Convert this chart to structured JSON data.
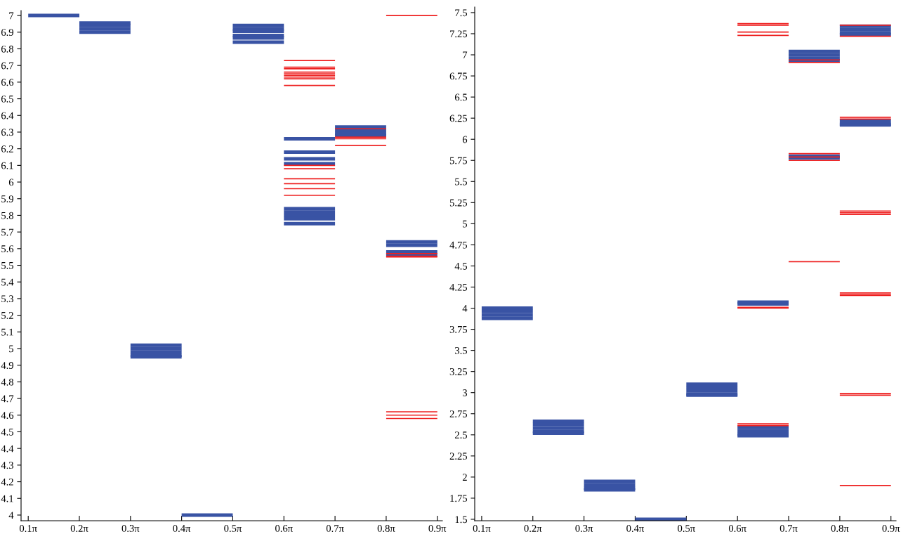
{
  "chart_data": [
    {
      "type": "line",
      "xlim": [
        0.2702,
        2.8588
      ],
      "ylim": [
        3.966,
        7.03
      ],
      "grid": false,
      "marker": "none",
      "line_style": "solid",
      "xticks": [
        {
          "value": 0.3142,
          "label": "0.1π"
        },
        {
          "value": 0.6283,
          "label": "0.2π"
        },
        {
          "value": 0.9425,
          "label": "0.3π"
        },
        {
          "value": 1.2566,
          "label": "0.4π"
        },
        {
          "value": 1.5708,
          "label": "0.5π"
        },
        {
          "value": 1.885,
          "label": "0.6π"
        },
        {
          "value": 2.1991,
          "label": "0.7π"
        },
        {
          "value": 2.5133,
          "label": "0.8π"
        },
        {
          "value": 2.8274,
          "label": "0.9π"
        }
      ],
      "yticks": [
        4,
        4.1,
        4.2,
        4.3,
        4.4,
        4.5,
        4.6,
        4.7,
        4.8,
        4.9,
        5,
        5.1,
        5.2,
        5.3,
        5.4,
        5.5,
        5.6,
        5.7,
        5.8,
        5.9,
        6,
        6.1,
        6.2,
        6.3,
        6.4,
        6.5,
        6.6,
        6.7,
        6.8,
        6.9,
        7
      ],
      "series": [
        {
          "color": "#3953a4",
          "x": [
            0.3142,
            0.6283
          ],
          "values": [
            7.0,
            7.0
          ]
        },
        {
          "color": "#3953a4",
          "x": [
            0.6283,
            0.9425
          ],
          "values": [
            6.955,
            6.955
          ]
        },
        {
          "color": "#3953a4",
          "x": [
            0.6283,
            0.9425
          ],
          "values": [
            6.94,
            6.94
          ]
        },
        {
          "color": "#3953a4",
          "x": [
            0.6283,
            0.9425
          ],
          "values": [
            6.92,
            6.92
          ]
        },
        {
          "color": "#3953a4",
          "x": [
            0.6283,
            0.9425
          ],
          "values": [
            6.9,
            6.9
          ]
        },
        {
          "color": "#3953a4",
          "x": [
            0.9425,
            1.2566
          ],
          "values": [
            5.02,
            5.02
          ]
        },
        {
          "color": "#3953a4",
          "x": [
            0.9425,
            1.2566
          ],
          "values": [
            5.0,
            5.0
          ]
        },
        {
          "color": "#3953a4",
          "x": [
            0.9425,
            1.2566
          ],
          "values": [
            4.98,
            4.98
          ]
        },
        {
          "color": "#3953a4",
          "x": [
            0.9425,
            1.2566
          ],
          "values": [
            4.96,
            4.96
          ]
        },
        {
          "color": "#3953a4",
          "x": [
            0.9425,
            1.2566
          ],
          "values": [
            4.95,
            4.95
          ]
        },
        {
          "color": "#3953a4",
          "x": [
            1.2566,
            1.5708
          ],
          "values": [
            4.0,
            4.0
          ]
        },
        {
          "color": "#3953a4",
          "x": [
            1.5708,
            1.885
          ],
          "values": [
            6.94,
            6.94
          ]
        },
        {
          "color": "#3953a4",
          "x": [
            1.5708,
            1.885
          ],
          "values": [
            6.92,
            6.92
          ]
        },
        {
          "color": "#3953a4",
          "x": [
            1.5708,
            1.885
          ],
          "values": [
            6.905,
            6.905
          ]
        },
        {
          "color": "#3953a4",
          "x": [
            1.5708,
            1.885
          ],
          "values": [
            6.88,
            6.88
          ]
        },
        {
          "color": "#3953a4",
          "x": [
            1.5708,
            1.885
          ],
          "values": [
            6.865,
            6.865
          ]
        },
        {
          "color": "#3953a4",
          "x": [
            1.5708,
            1.885
          ],
          "values": [
            6.84,
            6.84
          ]
        },
        {
          "color": "#ee2020",
          "x": [
            1.885,
            2.1991
          ],
          "values": [
            6.73,
            6.73
          ]
        },
        {
          "color": "#ee2020",
          "x": [
            1.885,
            2.1991
          ],
          "values": [
            6.69,
            6.69
          ]
        },
        {
          "color": "#ee2020",
          "x": [
            1.885,
            2.1991
          ],
          "values": [
            6.68,
            6.68
          ]
        },
        {
          "color": "#ee2020",
          "x": [
            1.885,
            2.1991
          ],
          "values": [
            6.66,
            6.66
          ]
        },
        {
          "color": "#ee2020",
          "x": [
            1.885,
            2.1991
          ],
          "values": [
            6.65,
            6.65
          ]
        },
        {
          "color": "#ee2020",
          "x": [
            1.885,
            2.1991
          ],
          "values": [
            6.64,
            6.64
          ]
        },
        {
          "color": "#ee2020",
          "x": [
            1.885,
            2.1991
          ],
          "values": [
            6.63,
            6.63
          ]
        },
        {
          "color": "#ee2020",
          "x": [
            1.885,
            2.1991
          ],
          "values": [
            6.62,
            6.62
          ]
        },
        {
          "color": "#ee2020",
          "x": [
            1.885,
            2.1991
          ],
          "values": [
            6.58,
            6.58
          ]
        },
        {
          "color": "#3953a4",
          "x": [
            1.885,
            2.1991
          ],
          "values": [
            6.26,
            6.26
          ]
        },
        {
          "color": "#3953a4",
          "x": [
            1.885,
            2.1991
          ],
          "values": [
            6.18,
            6.18
          ]
        },
        {
          "color": "#3953a4",
          "x": [
            1.885,
            2.1991
          ],
          "values": [
            6.14,
            6.14
          ]
        },
        {
          "color": "#3953a4",
          "x": [
            1.885,
            2.1991
          ],
          "values": [
            6.11,
            6.11
          ]
        },
        {
          "color": "#ee2020",
          "x": [
            1.885,
            2.1991
          ],
          "values": [
            6.1,
            6.1
          ]
        },
        {
          "color": "#ee2020",
          "x": [
            1.885,
            2.1991
          ],
          "values": [
            6.08,
            6.08
          ]
        },
        {
          "color": "#ee2020",
          "x": [
            1.885,
            2.1991
          ],
          "values": [
            6.02,
            6.02
          ]
        },
        {
          "color": "#ee2020",
          "x": [
            1.885,
            2.1991
          ],
          "values": [
            5.99,
            5.99
          ]
        },
        {
          "color": "#ee2020",
          "x": [
            1.885,
            2.1991
          ],
          "values": [
            5.96,
            5.96
          ]
        },
        {
          "color": "#ee2020",
          "x": [
            1.885,
            2.1991
          ],
          "values": [
            5.92,
            5.92
          ]
        },
        {
          "color": "#3953a4",
          "x": [
            1.885,
            2.1991
          ],
          "values": [
            5.84,
            5.84
          ]
        },
        {
          "color": "#3953a4",
          "x": [
            1.885,
            2.1991
          ],
          "values": [
            5.82,
            5.82
          ]
        },
        {
          "color": "#3953a4",
          "x": [
            1.885,
            2.1991
          ],
          "values": [
            5.8,
            5.8
          ]
        },
        {
          "color": "#3953a4",
          "x": [
            1.885,
            2.1991
          ],
          "values": [
            5.78,
            5.78
          ]
        },
        {
          "color": "#3953a4",
          "x": [
            1.885,
            2.1991
          ],
          "values": [
            5.75,
            5.75
          ]
        },
        {
          "color": "#3953a4",
          "x": [
            2.1991,
            2.5133
          ],
          "values": [
            6.33,
            6.33
          ]
        },
        {
          "color": "#3953a4",
          "x": [
            2.1991,
            2.5133
          ],
          "values": [
            6.31,
            6.31
          ]
        },
        {
          "color": "#3953a4",
          "x": [
            2.1991,
            2.5133
          ],
          "values": [
            6.29,
            6.29
          ]
        },
        {
          "color": "#3953a4",
          "x": [
            2.1991,
            2.5133
          ],
          "values": [
            6.28,
            6.28
          ]
        },
        {
          "color": "#ee2020",
          "x": [
            2.1991,
            2.5133
          ],
          "values": [
            6.32,
            6.32
          ]
        },
        {
          "color": "#ee2020",
          "x": [
            2.1991,
            2.5133
          ],
          "values": [
            6.27,
            6.27
          ]
        },
        {
          "color": "#ee2020",
          "x": [
            2.1991,
            2.5133
          ],
          "values": [
            6.26,
            6.26
          ]
        },
        {
          "color": "#ee2020",
          "x": [
            2.1991,
            2.5133
          ],
          "values": [
            6.22,
            6.22
          ]
        },
        {
          "color": "#ee2020",
          "x": [
            2.5133,
            2.8274
          ],
          "values": [
            7.0,
            7.0
          ]
        },
        {
          "color": "#3953a4",
          "x": [
            2.5133,
            2.8274
          ],
          "values": [
            5.64,
            5.64
          ]
        },
        {
          "color": "#3953a4",
          "x": [
            2.5133,
            2.8274
          ],
          "values": [
            5.62,
            5.62
          ]
        },
        {
          "color": "#3953a4",
          "x": [
            2.5133,
            2.8274
          ],
          "values": [
            5.58,
            5.58
          ]
        },
        {
          "color": "#3953a4",
          "x": [
            2.5133,
            2.8274
          ],
          "values": [
            5.56,
            5.56
          ]
        },
        {
          "color": "#ee2020",
          "x": [
            2.5133,
            2.8274
          ],
          "values": [
            5.57,
            5.57
          ]
        },
        {
          "color": "#ee2020",
          "x": [
            2.5133,
            2.8274
          ],
          "values": [
            5.555,
            5.555
          ]
        },
        {
          "color": "#ee2020",
          "x": [
            2.5133,
            2.8274
          ],
          "values": [
            5.55,
            5.55
          ]
        },
        {
          "color": "#ee2020",
          "x": [
            2.5133,
            2.8274
          ],
          "values": [
            4.62,
            4.62
          ]
        },
        {
          "color": "#ee2020",
          "x": [
            2.5133,
            2.8274
          ],
          "values": [
            4.6,
            4.6
          ]
        },
        {
          "color": "#ee2020",
          "x": [
            2.5133,
            2.8274
          ],
          "values": [
            4.58,
            4.58
          ]
        }
      ]
    },
    {
      "type": "line",
      "xlim": [
        0.2714,
        2.8588
      ],
      "ylim": [
        1.483,
        7.566
      ],
      "grid": false,
      "marker": "none",
      "line_style": "solid",
      "xticks": [
        {
          "value": 0.3142,
          "label": "0.1π"
        },
        {
          "value": 0.6283,
          "label": "0.2π"
        },
        {
          "value": 0.9425,
          "label": "0.3π"
        },
        {
          "value": 1.2566,
          "label": "0.4π"
        },
        {
          "value": 1.5708,
          "label": "0.5π"
        },
        {
          "value": 1.885,
          "label": "0.6π"
        },
        {
          "value": 2.1991,
          "label": "0.7π"
        },
        {
          "value": 2.5133,
          "label": "0.8π"
        },
        {
          "value": 2.8274,
          "label": "0.9π"
        }
      ],
      "yticks": [
        1.5,
        1.75,
        2,
        2.25,
        2.5,
        2.75,
        3,
        3.25,
        3.5,
        3.75,
        4,
        4.25,
        4.5,
        4.75,
        5,
        5.25,
        5.5,
        5.75,
        6,
        6.25,
        6.5,
        6.75,
        7,
        7.25,
        7.5
      ],
      "series": [
        {
          "color": "#3953a4",
          "x": [
            0.3142,
            0.6283
          ],
          "values": [
            4.0,
            4.0
          ]
        },
        {
          "color": "#3953a4",
          "x": [
            0.3142,
            0.6283
          ],
          "values": [
            3.96,
            3.96
          ]
        },
        {
          "color": "#3953a4",
          "x": [
            0.3142,
            0.6283
          ],
          "values": [
            3.92,
            3.92
          ]
        },
        {
          "color": "#3953a4",
          "x": [
            0.3142,
            0.6283
          ],
          "values": [
            3.88,
            3.88
          ]
        },
        {
          "color": "#3953a4",
          "x": [
            0.6283,
            0.9425
          ],
          "values": [
            2.66,
            2.66
          ]
        },
        {
          "color": "#3953a4",
          "x": [
            0.6283,
            0.9425
          ],
          "values": [
            2.62,
            2.62
          ]
        },
        {
          "color": "#3953a4",
          "x": [
            0.6283,
            0.9425
          ],
          "values": [
            2.58,
            2.58
          ]
        },
        {
          "color": "#3953a4",
          "x": [
            0.6283,
            0.9425
          ],
          "values": [
            2.54,
            2.54
          ]
        },
        {
          "color": "#3953a4",
          "x": [
            0.6283,
            0.9425
          ],
          "values": [
            2.52,
            2.52
          ]
        },
        {
          "color": "#3953a4",
          "x": [
            0.9425,
            1.2566
          ],
          "values": [
            1.95,
            1.95
          ]
        },
        {
          "color": "#3953a4",
          "x": [
            0.9425,
            1.2566
          ],
          "values": [
            1.91,
            1.91
          ]
        },
        {
          "color": "#3953a4",
          "x": [
            0.9425,
            1.2566
          ],
          "values": [
            1.87,
            1.87
          ]
        },
        {
          "color": "#3953a4",
          "x": [
            0.9425,
            1.2566
          ],
          "values": [
            1.85,
            1.85
          ]
        },
        {
          "color": "#3953a4",
          "x": [
            1.2566,
            1.5708
          ],
          "values": [
            1.5,
            1.5
          ]
        },
        {
          "color": "#3953a4",
          "x": [
            1.5708,
            1.885
          ],
          "values": [
            3.1,
            3.1
          ]
        },
        {
          "color": "#3953a4",
          "x": [
            1.5708,
            1.885
          ],
          "values": [
            3.06,
            3.06
          ]
        },
        {
          "color": "#3953a4",
          "x": [
            1.5708,
            1.885
          ],
          "values": [
            3.02,
            3.02
          ]
        },
        {
          "color": "#3953a4",
          "x": [
            1.5708,
            1.885
          ],
          "values": [
            2.98,
            2.98
          ]
        },
        {
          "color": "#3953a4",
          "x": [
            1.5708,
            1.885
          ],
          "values": [
            2.97,
            2.97
          ]
        },
        {
          "color": "#ee2020",
          "x": [
            1.885,
            2.1991
          ],
          "values": [
            7.37,
            7.37
          ]
        },
        {
          "color": "#ee2020",
          "x": [
            1.885,
            2.1991
          ],
          "values": [
            7.35,
            7.35
          ]
        },
        {
          "color": "#ee2020",
          "x": [
            1.885,
            2.1991
          ],
          "values": [
            7.27,
            7.27
          ]
        },
        {
          "color": "#ee2020",
          "x": [
            1.885,
            2.1991
          ],
          "values": [
            7.23,
            7.23
          ]
        },
        {
          "color": "#3953a4",
          "x": [
            1.885,
            2.1991
          ],
          "values": [
            4.07,
            4.07
          ]
        },
        {
          "color": "#3953a4",
          "x": [
            1.885,
            2.1991
          ],
          "values": [
            4.05,
            4.05
          ]
        },
        {
          "color": "#ee2020",
          "x": [
            1.885,
            2.1991
          ],
          "values": [
            4.01,
            4.01
          ]
        },
        {
          "color": "#ee2020",
          "x": [
            1.885,
            2.1991
          ],
          "values": [
            4.0,
            4.0
          ]
        },
        {
          "color": "#3953a4",
          "x": [
            1.885,
            2.1991
          ],
          "values": [
            2.59,
            2.59
          ]
        },
        {
          "color": "#3953a4",
          "x": [
            1.885,
            2.1991
          ],
          "values": [
            2.55,
            2.55
          ]
        },
        {
          "color": "#3953a4",
          "x": [
            1.885,
            2.1991
          ],
          "values": [
            2.51,
            2.51
          ]
        },
        {
          "color": "#3953a4",
          "x": [
            1.885,
            2.1991
          ],
          "values": [
            2.49,
            2.49
          ]
        },
        {
          "color": "#ee2020",
          "x": [
            1.885,
            2.1991
          ],
          "values": [
            2.63,
            2.63
          ]
        },
        {
          "color": "#ee2020",
          "x": [
            1.885,
            2.1991
          ],
          "values": [
            2.61,
            2.61
          ]
        },
        {
          "color": "#3953a4",
          "x": [
            2.1991,
            2.5133
          ],
          "values": [
            7.04,
            7.04
          ]
        },
        {
          "color": "#3953a4",
          "x": [
            2.1991,
            2.5133
          ],
          "values": [
            7.0,
            7.0
          ]
        },
        {
          "color": "#3953a4",
          "x": [
            2.1991,
            2.5133
          ],
          "values": [
            6.96,
            6.96
          ]
        },
        {
          "color": "#3953a4",
          "x": [
            2.1991,
            2.5133
          ],
          "values": [
            6.93,
            6.93
          ]
        },
        {
          "color": "#ee2020",
          "x": [
            2.1991,
            2.5133
          ],
          "values": [
            6.94,
            6.94
          ]
        },
        {
          "color": "#ee2020",
          "x": [
            2.1991,
            2.5133
          ],
          "values": [
            6.91,
            6.91
          ]
        },
        {
          "color": "#3953a4",
          "x": [
            2.1991,
            2.5133
          ],
          "values": [
            5.8,
            5.8
          ]
        },
        {
          "color": "#3953a4",
          "x": [
            2.1991,
            2.5133
          ],
          "values": [
            5.78,
            5.78
          ]
        },
        {
          "color": "#ee2020",
          "x": [
            2.1991,
            2.5133
          ],
          "values": [
            5.83,
            5.83
          ]
        },
        {
          "color": "#ee2020",
          "x": [
            2.1991,
            2.5133
          ],
          "values": [
            5.79,
            5.79
          ]
        },
        {
          "color": "#ee2020",
          "x": [
            2.1991,
            2.5133
          ],
          "values": [
            5.75,
            5.75
          ]
        },
        {
          "color": "#ee2020",
          "x": [
            2.1991,
            2.5133
          ],
          "values": [
            4.55,
            4.55
          ]
        },
        {
          "color": "#3953a4",
          "x": [
            2.5133,
            2.8274
          ],
          "values": [
            7.34,
            7.34
          ]
        },
        {
          "color": "#3953a4",
          "x": [
            2.5133,
            2.8274
          ],
          "values": [
            7.3,
            7.3
          ]
        },
        {
          "color": "#3953a4",
          "x": [
            2.5133,
            2.8274
          ],
          "values": [
            7.26,
            7.26
          ]
        },
        {
          "color": "#3953a4",
          "x": [
            2.5133,
            2.8274
          ],
          "values": [
            7.24,
            7.24
          ]
        },
        {
          "color": "#ee2020",
          "x": [
            2.5133,
            2.8274
          ],
          "values": [
            7.35,
            7.35
          ]
        },
        {
          "color": "#ee2020",
          "x": [
            2.5133,
            2.8274
          ],
          "values": [
            7.22,
            7.22
          ]
        },
        {
          "color": "#3953a4",
          "x": [
            2.5133,
            2.8274
          ],
          "values": [
            6.22,
            6.22
          ]
        },
        {
          "color": "#3953a4",
          "x": [
            2.5133,
            2.8274
          ],
          "values": [
            6.18,
            6.18
          ]
        },
        {
          "color": "#3953a4",
          "x": [
            2.5133,
            2.8274
          ],
          "values": [
            6.17,
            6.17
          ]
        },
        {
          "color": "#ee2020",
          "x": [
            2.5133,
            2.8274
          ],
          "values": [
            6.26,
            6.26
          ]
        },
        {
          "color": "#ee2020",
          "x": [
            2.5133,
            2.8274
          ],
          "values": [
            6.24,
            6.24
          ]
        },
        {
          "color": "#ee2020",
          "x": [
            2.5133,
            2.8274
          ],
          "values": [
            5.15,
            5.15
          ]
        },
        {
          "color": "#ee2020",
          "x": [
            2.5133,
            2.8274
          ],
          "values": [
            5.13,
            5.13
          ]
        },
        {
          "color": "#ee2020",
          "x": [
            2.5133,
            2.8274
          ],
          "values": [
            5.11,
            5.11
          ]
        },
        {
          "color": "#ee2020",
          "x": [
            2.5133,
            2.8274
          ],
          "values": [
            4.18,
            4.18
          ]
        },
        {
          "color": "#ee2020",
          "x": [
            2.5133,
            2.8274
          ],
          "values": [
            4.16,
            4.16
          ]
        },
        {
          "color": "#ee2020",
          "x": [
            2.5133,
            2.8274
          ],
          "values": [
            4.15,
            4.15
          ]
        },
        {
          "color": "#ee2020",
          "x": [
            2.5133,
            2.8274
          ],
          "values": [
            2.99,
            2.99
          ]
        },
        {
          "color": "#ee2020",
          "x": [
            2.5133,
            2.8274
          ],
          "values": [
            2.97,
            2.97
          ]
        },
        {
          "color": "#ee2020",
          "x": [
            2.5133,
            2.8274
          ],
          "values": [
            1.9,
            1.9
          ]
        }
      ]
    }
  ]
}
